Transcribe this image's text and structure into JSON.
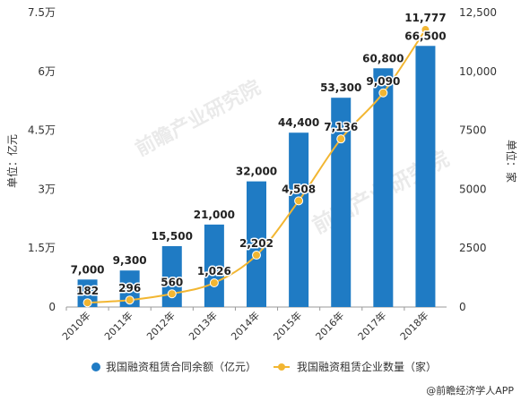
{
  "chart_data": {
    "type": "bar",
    "categories": [
      "2010年",
      "2011年",
      "2012年",
      "2013年",
      "2014年",
      "2015年",
      "2016年",
      "2017年",
      "2018年"
    ],
    "series": [
      {
        "name": "我国融资租赁合同余额（亿元）",
        "type": "bar",
        "axis": "left",
        "color": "#1f7bc4",
        "values": [
          7000,
          9300,
          15500,
          21000,
          32000,
          44400,
          53300,
          60800,
          66500
        ],
        "labels": [
          "7,000",
          "9,300",
          "15,500",
          "21,000",
          "32,000",
          "44,400",
          "53,300",
          "60,800",
          "66,500"
        ]
      },
      {
        "name": "我国融资租赁企业数量（家）",
        "type": "line",
        "axis": "right",
        "color": "#f2b632",
        "values": [
          182,
          296,
          560,
          1026,
          2202,
          4508,
          7136,
          9090,
          11777
        ],
        "labels": [
          "182",
          "296",
          "560",
          "1,026",
          "2,202",
          "4,508",
          "7,136",
          "9,090",
          "11,777"
        ]
      }
    ],
    "left_axis": {
      "label": "单位：亿元",
      "ylim": [
        0,
        75000
      ],
      "ticks": [
        0,
        15000,
        30000,
        45000,
        60000,
        75000
      ],
      "tick_labels": [
        "0",
        "1.5万",
        "3万",
        "4.5万",
        "6万",
        "7.5万"
      ]
    },
    "right_axis": {
      "label": "单位：家",
      "ylim": [
        0,
        12500
      ],
      "ticks": [
        0,
        2500,
        5000,
        7500,
        10000,
        12500
      ],
      "tick_labels": [
        "0",
        "2500",
        "5000",
        "7500",
        "10,000",
        "12,500"
      ]
    },
    "grid": false,
    "legend": "bottom"
  },
  "watermark": "前瞻产业研究院",
  "source": "@前瞻经济学人APP"
}
